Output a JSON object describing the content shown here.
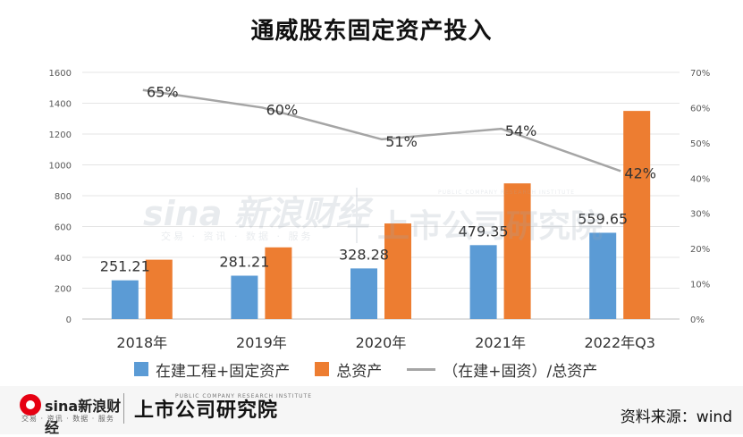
{
  "title": "通威股东固定资产投入",
  "chart_data": {
    "type": "bar",
    "title": "通威股东固定资产投入",
    "categories": [
      "2018年",
      "2019年",
      "2020年",
      "2021年",
      "2022年Q3"
    ],
    "series": [
      {
        "name": "在建工程+固定资产",
        "type": "bar",
        "axis": "left",
        "color": "#5b9bd5",
        "values": [
          251.21,
          281.21,
          328.28,
          479.35,
          559.65
        ],
        "labels": [
          "251.21",
          "281.21",
          "328.28",
          "479.35",
          "559.65"
        ]
      },
      {
        "name": "总资产",
        "type": "bar",
        "axis": "left",
        "color": "#ed7d31",
        "values": [
          385,
          465,
          620,
          880,
          1350
        ]
      },
      {
        "name": "（在建+固资）/总资产",
        "type": "line",
        "axis": "right",
        "color": "#a5a5a5",
        "values": [
          0.65,
          0.6,
          0.51,
          0.54,
          0.42
        ],
        "labels": [
          "65%",
          "60%",
          "51%",
          "54%",
          "42%"
        ]
      }
    ],
    "y_left": {
      "min": 0,
      "max": 1600,
      "ticks": [
        "0",
        "200",
        "400",
        "600",
        "800",
        "1000",
        "1200",
        "1400",
        "1600"
      ]
    },
    "y_right": {
      "min": 0,
      "max": 0.7,
      "ticks": [
        "0%",
        "10%",
        "20%",
        "30%",
        "40%",
        "50%",
        "60%",
        "70%"
      ]
    },
    "grid": true,
    "legend_position": "bottom"
  },
  "watermark": {
    "sina_logo": "sina 新浪财经",
    "sina_sub": "交易 · 资讯 · 数据 · 服务",
    "institute": "上市公司研究院",
    "institute_sub": "PUBLIC COMPANY RESEARCH INSTITUTE"
  },
  "footer": {
    "sina_name": "sina新浪财经",
    "sina_sub": "交易 · 资讯 · 数据 · 服务",
    "institute": "上市公司研究院",
    "institute_sub": "PUBLIC COMPANY RESEARCH INSTITUTE",
    "source": "资料来源：wind"
  }
}
